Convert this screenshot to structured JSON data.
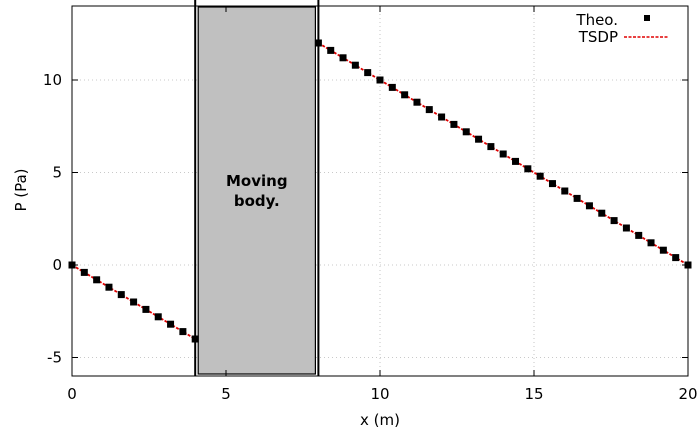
{
  "chart_data": {
    "type": "line",
    "xlabel": "x (m)",
    "ylabel": "P (Pa)",
    "xlim": [
      0,
      20
    ],
    "ylim": [
      -6,
      14
    ],
    "x_ticks": [
      "0",
      "5",
      "10",
      "15",
      "20"
    ],
    "y_ticks": [
      "-5",
      "0",
      "5",
      "10"
    ],
    "grid": true,
    "legend_position": "top-right",
    "moving_body": {
      "label_line1": "Moving",
      "label_line2": "body.",
      "x_range": [
        4,
        8
      ],
      "fill": "#c0c0c0"
    },
    "series": [
      {
        "name": "Theo.",
        "style": "points",
        "color": "#000000",
        "segments": [
          {
            "x": [
              0,
              0.4,
              0.8,
              1.2,
              1.6,
              2.0,
              2.4,
              2.8,
              3.2,
              3.6,
              4.0
            ],
            "y": [
              0,
              -0.4,
              -0.8,
              -1.2,
              -1.6,
              -2.0,
              -2.4,
              -2.8,
              -3.2,
              -3.6,
              -4.0
            ]
          },
          {
            "x": [
              8.0,
              8.4,
              8.8,
              9.2,
              9.6,
              10.0,
              10.4,
              10.8,
              11.2,
              11.6,
              12.0,
              12.4,
              12.8,
              13.2,
              13.6,
              14.0,
              14.4,
              14.8,
              15.2,
              15.6,
              16.0,
              16.4,
              16.8,
              17.2,
              17.6,
              18.0,
              18.4,
              18.8,
              19.2,
              19.6,
              20.0
            ],
            "y": [
              12.0,
              11.6,
              11.2,
              10.8,
              10.4,
              10.0,
              9.6,
              9.2,
              8.8,
              8.4,
              8.0,
              7.6,
              7.2,
              6.8,
              6.4,
              6.0,
              5.6,
              5.2,
              4.8,
              4.4,
              4.0,
              3.6,
              3.2,
              2.8,
              2.4,
              2.0,
              1.6,
              1.2,
              0.8,
              0.4,
              0.0
            ]
          }
        ]
      },
      {
        "name": "TSDP",
        "style": "dashed-line",
        "color": "#e00000",
        "segments": [
          {
            "x": [
              0,
              4
            ],
            "y": [
              0,
              -4
            ]
          },
          {
            "x": [
              8,
              20
            ],
            "y": [
              12,
              0
            ]
          }
        ]
      }
    ]
  }
}
